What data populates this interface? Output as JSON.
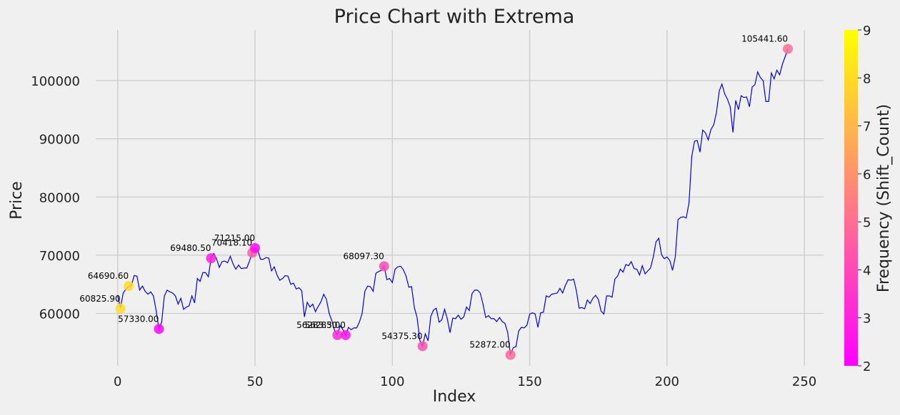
{
  "chart_data": {
    "type": "line",
    "title": "Price Chart with Extrema",
    "xlabel": "Index",
    "ylabel": "Price",
    "xlim": [
      -8,
      257
    ],
    "ylim": [
      51000,
      108700
    ],
    "x_ticks": [
      0,
      50,
      100,
      150,
      200,
      250
    ],
    "y_ticks": [
      60000,
      70000,
      80000,
      90000,
      100000
    ],
    "grid": true,
    "line_color": "#0000ee",
    "series": [
      {
        "points": [
          [
            0,
            63000
          ],
          [
            1,
            61000
          ],
          [
            2,
            63500
          ],
          [
            3,
            64200
          ],
          [
            4,
            64600
          ],
          [
            5,
            64800
          ],
          [
            6,
            66500
          ],
          [
            7,
            66400
          ],
          [
            8,
            64000
          ],
          [
            9,
            64700
          ],
          [
            10,
            63800
          ],
          [
            11,
            63300
          ],
          [
            12,
            63700
          ],
          [
            13,
            63000
          ],
          [
            14,
            60500
          ],
          [
            15,
            57400
          ],
          [
            16,
            58500
          ],
          [
            17,
            63000
          ],
          [
            18,
            64000
          ],
          [
            19,
            63700
          ],
          [
            20,
            63500
          ],
          [
            21,
            63000
          ],
          [
            22,
            61600
          ],
          [
            23,
            62600
          ],
          [
            24,
            60700
          ],
          [
            25,
            61100
          ],
          [
            26,
            61300
          ],
          [
            27,
            63000
          ],
          [
            28,
            61800
          ],
          [
            29,
            66000
          ],
          [
            30,
            65500
          ],
          [
            31,
            67000
          ],
          [
            32,
            67000
          ],
          [
            33,
            66300
          ],
          [
            34,
            69500
          ],
          [
            35,
            70300
          ],
          [
            36,
            69400
          ],
          [
            37,
            67900
          ],
          [
            38,
            68900
          ],
          [
            39,
            69000
          ],
          [
            40,
            68700
          ],
          [
            41,
            69800
          ],
          [
            42,
            68500
          ],
          [
            43,
            67600
          ],
          [
            44,
            68300
          ],
          [
            45,
            67700
          ],
          [
            46,
            67800
          ],
          [
            47,
            67800
          ],
          [
            48,
            69000
          ],
          [
            49,
            70400
          ],
          [
            50,
            71200
          ],
          [
            51,
            70900
          ],
          [
            52,
            69300
          ],
          [
            53,
            69300
          ],
          [
            54,
            69600
          ],
          [
            55,
            69500
          ],
          [
            56,
            67300
          ],
          [
            57,
            68000
          ],
          [
            58,
            66600
          ],
          [
            59,
            65700
          ],
          [
            60,
            66000
          ],
          [
            61,
            66500
          ],
          [
            62,
            66400
          ],
          [
            63,
            65000
          ],
          [
            64,
            65200
          ],
          [
            65,
            64200
          ],
          [
            66,
            64400
          ],
          [
            67,
            63900
          ],
          [
            68,
            59400
          ],
          [
            69,
            61900
          ],
          [
            70,
            61100
          ],
          [
            71,
            61600
          ],
          [
            72,
            60300
          ],
          [
            73,
            61200
          ],
          [
            74,
            62000
          ],
          [
            75,
            63300
          ],
          [
            76,
            62400
          ],
          [
            77,
            60000
          ],
          [
            78,
            58700
          ],
          [
            79,
            57000
          ],
          [
            80,
            56300
          ],
          [
            81,
            57900
          ],
          [
            82,
            57200
          ],
          [
            83,
            56200
          ],
          [
            84,
            57600
          ],
          [
            85,
            57200
          ],
          [
            86,
            57500
          ],
          [
            87,
            57500
          ],
          [
            88,
            58500
          ],
          [
            89,
            60000
          ],
          [
            90,
            63800
          ],
          [
            91,
            64700
          ],
          [
            92,
            64600
          ],
          [
            93,
            63800
          ],
          [
            94,
            66900
          ],
          [
            95,
            67200
          ],
          [
            96,
            67400
          ],
          [
            97,
            68100
          ],
          [
            98,
            65800
          ],
          [
            99,
            66000
          ],
          [
            100,
            65300
          ],
          [
            101,
            67600
          ],
          [
            102,
            68000
          ],
          [
            103,
            68100
          ],
          [
            104,
            67500
          ],
          [
            105,
            66400
          ],
          [
            106,
            64500
          ],
          [
            107,
            64600
          ],
          [
            108,
            61000
          ],
          [
            109,
            59300
          ],
          [
            110,
            55400
          ],
          [
            111,
            54400
          ],
          [
            112,
            56500
          ],
          [
            113,
            55300
          ],
          [
            114,
            59500
          ],
          [
            115,
            60600
          ],
          [
            116,
            60900
          ],
          [
            117,
            58500
          ],
          [
            118,
            58900
          ],
          [
            119,
            60700
          ],
          [
            120,
            59100
          ],
          [
            121,
            56700
          ],
          [
            122,
            59200
          ],
          [
            123,
            59100
          ],
          [
            124,
            59700
          ],
          [
            125,
            59000
          ],
          [
            126,
            59400
          ],
          [
            127,
            61100
          ],
          [
            128,
            60500
          ],
          [
            129,
            63400
          ],
          [
            130,
            64000
          ],
          [
            131,
            64000
          ],
          [
            132,
            63500
          ],
          [
            133,
            61600
          ],
          [
            134,
            59300
          ],
          [
            135,
            59600
          ],
          [
            136,
            59100
          ],
          [
            137,
            59100
          ],
          [
            138,
            58600
          ],
          [
            139,
            59300
          ],
          [
            140,
            58600
          ],
          [
            141,
            58300
          ],
          [
            142,
            56700
          ],
          [
            143,
            52900
          ],
          [
            144,
            54100
          ],
          [
            145,
            54300
          ],
          [
            146,
            57000
          ],
          [
            147,
            57600
          ],
          [
            148,
            57500
          ],
          [
            149,
            58000
          ],
          [
            150,
            59900
          ],
          [
            151,
            60100
          ],
          [
            152,
            59900
          ],
          [
            153,
            57600
          ],
          [
            154,
            60100
          ],
          [
            155,
            60200
          ],
          [
            156,
            63000
          ],
          [
            157,
            62800
          ],
          [
            158,
            63300
          ],
          [
            159,
            63400
          ],
          [
            160,
            63500
          ],
          [
            161,
            64300
          ],
          [
            162,
            63500
          ],
          [
            163,
            64800
          ],
          [
            164,
            65800
          ],
          [
            165,
            65700
          ],
          [
            166,
            65900
          ],
          [
            167,
            63900
          ],
          [
            168,
            60900
          ],
          [
            169,
            61000
          ],
          [
            170,
            60800
          ],
          [
            171,
            62300
          ],
          [
            172,
            61700
          ],
          [
            173,
            62600
          ],
          [
            174,
            63100
          ],
          [
            175,
            62400
          ],
          [
            176,
            60400
          ],
          [
            177,
            59900
          ],
          [
            178,
            63000
          ],
          [
            179,
            63000
          ],
          [
            180,
            62800
          ],
          [
            181,
            65900
          ],
          [
            182,
            66400
          ],
          [
            183,
            67600
          ],
          [
            184,
            67100
          ],
          [
            185,
            68400
          ],
          [
            186,
            68200
          ],
          [
            187,
            68900
          ],
          [
            188,
            67700
          ],
          [
            189,
            67600
          ],
          [
            190,
            66600
          ],
          [
            191,
            68200
          ],
          [
            192,
            66800
          ],
          [
            193,
            67300
          ],
          [
            194,
            67800
          ],
          [
            195,
            69700
          ],
          [
            196,
            72300
          ],
          [
            197,
            72900
          ],
          [
            198,
            70100
          ],
          [
            199,
            69400
          ],
          [
            200,
            69700
          ],
          [
            201,
            69100
          ],
          [
            202,
            67400
          ],
          [
            203,
            69700
          ],
          [
            204,
            76100
          ],
          [
            205,
            76500
          ],
          [
            206,
            76600
          ],
          [
            207,
            76400
          ],
          [
            208,
            79000
          ],
          [
            209,
            86900
          ],
          [
            210,
            89600
          ],
          [
            211,
            89700
          ],
          [
            212,
            87700
          ],
          [
            213,
            91500
          ],
          [
            214,
            91000
          ],
          [
            215,
            89800
          ],
          [
            216,
            91600
          ],
          [
            217,
            92400
          ],
          [
            218,
            94500
          ],
          [
            219,
            98200
          ],
          [
            220,
            99400
          ],
          [
            221,
            97700
          ],
          [
            222,
            96800
          ],
          [
            223,
            95500
          ],
          [
            224,
            91100
          ],
          [
            225,
            96600
          ],
          [
            226,
            95000
          ],
          [
            227,
            97400
          ],
          [
            228,
            97100
          ],
          [
            229,
            97200
          ],
          [
            230,
            95500
          ],
          [
            231,
            98900
          ],
          [
            232,
            99300
          ],
          [
            233,
            101500
          ],
          [
            234,
            100500
          ],
          [
            235,
            100000
          ],
          [
            236,
            96400
          ],
          [
            237,
            96400
          ],
          [
            238,
            101300
          ],
          [
            239,
            100300
          ],
          [
            240,
            101800
          ],
          [
            241,
            101000
          ],
          [
            242,
            102800
          ],
          [
            243,
            104100
          ],
          [
            244,
            105441.6
          ]
        ]
      }
    ],
    "extrema": [
      {
        "x": 1,
        "y": 60825.9,
        "label": "60825.90",
        "freq": 8
      },
      {
        "x": 4,
        "y": 64690.6,
        "label": "64690.60",
        "freq": 8
      },
      {
        "x": 15,
        "y": 57330.0,
        "label": "57330.00",
        "freq": 2.2
      },
      {
        "x": 34,
        "y": 69480.5,
        "label": "69480.50",
        "freq": 2.8
      },
      {
        "x": 49,
        "y": 70418.1,
        "label": "70418.10",
        "freq": 4.6
      },
      {
        "x": 50,
        "y": 71215.0,
        "label": "71215.00",
        "freq": 2.2
      },
      {
        "x": 80,
        "y": 56283.5,
        "label": "56283.50",
        "freq": 3.2
      },
      {
        "x": 83,
        "y": 56283.0,
        "label": "56283.00",
        "freq": 2.6
      },
      {
        "x": 97,
        "y": 68097.3,
        "label": "68097.30",
        "freq": 4
      },
      {
        "x": 111,
        "y": 54375.3,
        "label": "54375.30",
        "freq": 4.2
      },
      {
        "x": 143,
        "y": 52872.0,
        "label": "52872.00",
        "freq": 4.8
      },
      {
        "x": 244,
        "y": 105441.6,
        "label": "105441.60",
        "freq": 5
      }
    ],
    "colorbar": {
      "label": "Frequency (Shift_Count)",
      "min": 2,
      "max": 9,
      "ticks": [
        2,
        3,
        4,
        5,
        6,
        7,
        8,
        9
      ],
      "colormap": "spring",
      "start_color": "#ff00ff",
      "end_color": "#ffff00"
    }
  }
}
